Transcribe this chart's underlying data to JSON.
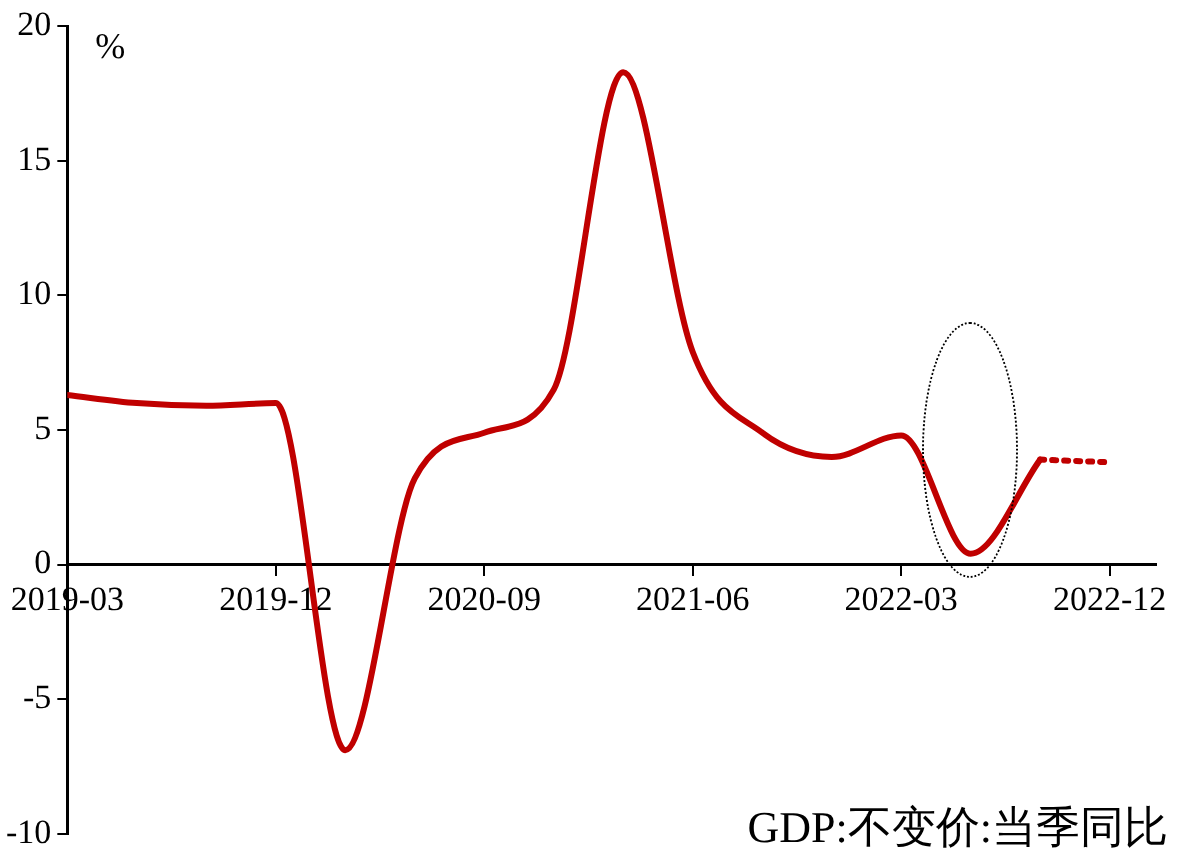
{
  "chart_data": {
    "type": "line",
    "ylabel": "%",
    "annotations": [
      "GDP:不变价:当季同比"
    ],
    "series": [
      {
        "color": "#c00000",
        "line_style": "solid",
        "x": [
          "2019-03",
          "2019-06",
          "2019-09",
          "2019-12",
          "2020-03",
          "2020-06",
          "2020-09",
          "2020-12",
          "2021-03",
          "2021-06",
          "2021-09",
          "2021-12",
          "2022-03",
          "2022-06",
          "2022-09"
        ],
        "values": [
          6.3,
          6.0,
          5.9,
          6.0,
          -6.9,
          3.2,
          4.9,
          6.5,
          18.3,
          7.9,
          4.9,
          4.0,
          4.8,
          0.4,
          3.9
        ]
      },
      {
        "color": "#c00000",
        "line_style": "dotted",
        "x": [
          "2022-09",
          "2022-12"
        ],
        "values": [
          3.9,
          3.8
        ]
      }
    ],
    "xlim": [
      "2019-03",
      "2023-02"
    ],
    "xticks": [
      "2019-03",
      "2019-12",
      "2020-09",
      "2021-06",
      "2022-03",
      "2022-12"
    ],
    "ylim": [
      -10,
      20
    ],
    "yticks": [
      -10,
      -5,
      0,
      5,
      10,
      15,
      20
    ],
    "grid": false,
    "legend": false,
    "marker": "none"
  }
}
